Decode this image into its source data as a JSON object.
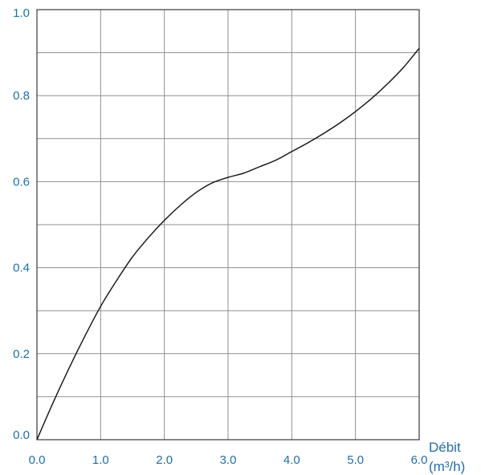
{
  "chart_data": {
    "type": "line",
    "title": "",
    "xlabel": "Débit",
    "xlabel_unit": "(m³/h)",
    "ylabel": "",
    "xlim": [
      0,
      6
    ],
    "ylim": [
      0,
      1
    ],
    "grid": true,
    "x_ticks": [
      0,
      1,
      2,
      3,
      4,
      5,
      6
    ],
    "y_ticks": [
      0,
      0.2,
      0.4,
      0.6,
      0.8,
      1.0
    ],
    "x_tick_labels": [
      "0.0",
      "1.0",
      "2.0",
      "3.0",
      "4.0",
      "5.0",
      "6.0"
    ],
    "y_tick_labels": [
      "0.0",
      "0.2",
      "0.4",
      "0.6",
      "0.8",
      "1.0"
    ],
    "x_minor_grid_step": 1,
    "y_minor_grid_step": 0.1,
    "series": [
      {
        "x": [
          0,
          0.25,
          0.5,
          0.75,
          1.0,
          1.25,
          1.5,
          1.75,
          2.0,
          2.25,
          2.5,
          2.75,
          3.0,
          3.25,
          3.5,
          3.75,
          4.0,
          4.25,
          4.5,
          4.75,
          5.0,
          5.25,
          5.5,
          5.75,
          6.0
        ],
        "y": [
          0,
          0.085,
          0.165,
          0.24,
          0.31,
          0.37,
          0.425,
          0.47,
          0.51,
          0.545,
          0.575,
          0.597,
          0.61,
          0.62,
          0.635,
          0.65,
          0.67,
          0.69,
          0.712,
          0.736,
          0.763,
          0.793,
          0.827,
          0.865,
          0.91
        ]
      }
    ]
  }
}
